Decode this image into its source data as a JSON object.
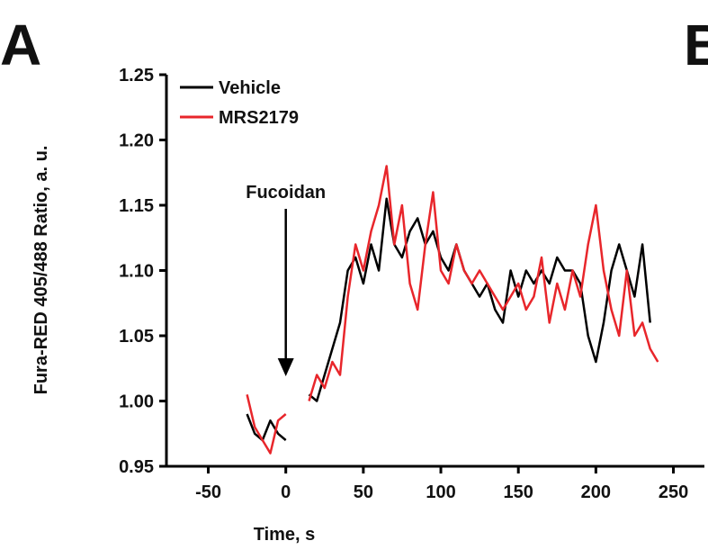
{
  "panel_labels": [
    "A",
    "B"
  ],
  "chart_data": {
    "type": "line",
    "x_label": "Time, s",
    "y_label": "Fura-RED 405/488 Ratio, a. u.",
    "x": [
      -25,
      -20,
      -15,
      -10,
      -5,
      0,
      5,
      10,
      15,
      20,
      25,
      30,
      35,
      40,
      45,
      50,
      55,
      60,
      65,
      70,
      75,
      80,
      85,
      90,
      95,
      100,
      105,
      110,
      115,
      120,
      125,
      130,
      135,
      140,
      145,
      150,
      155,
      160,
      165,
      170,
      175,
      180,
      185,
      190,
      195,
      200,
      205,
      210,
      215,
      220,
      225,
      230,
      235,
      240
    ],
    "series": [
      {
        "name": "Vehicle",
        "color": "#000000",
        "values": [
          0.99,
          0.975,
          0.97,
          0.985,
          0.975,
          0.97,
          null,
          null,
          1.005,
          1.0,
          1.02,
          1.04,
          1.06,
          1.1,
          1.11,
          1.09,
          1.12,
          1.1,
          1.155,
          1.12,
          1.11,
          1.13,
          1.14,
          1.12,
          1.13,
          1.11,
          1.1,
          1.12,
          1.1,
          1.09,
          1.08,
          1.09,
          1.07,
          1.06,
          1.1,
          1.08,
          1.1,
          1.09,
          1.1,
          1.09,
          1.11,
          1.1,
          1.1,
          1.09,
          1.05,
          1.03,
          1.06,
          1.1,
          1.12,
          1.1,
          1.08,
          1.12,
          1.06,
          null
        ]
      },
      {
        "name": "MRS2179",
        "color": "#e8262b",
        "values": [
          1.005,
          0.98,
          0.97,
          0.96,
          0.985,
          0.99,
          null,
          null,
          1.0,
          1.02,
          1.01,
          1.03,
          1.02,
          1.08,
          1.12,
          1.1,
          1.13,
          1.15,
          1.18,
          1.12,
          1.15,
          1.09,
          1.07,
          1.12,
          1.16,
          1.1,
          1.09,
          1.12,
          1.1,
          1.09,
          1.1,
          1.09,
          1.08,
          1.07,
          1.08,
          1.09,
          1.07,
          1.08,
          1.11,
          1.06,
          1.09,
          1.07,
          1.1,
          1.08,
          1.12,
          1.15,
          1.1,
          1.07,
          1.05,
          1.1,
          1.05,
          1.06,
          1.04,
          1.03
        ]
      }
    ],
    "xlim": [
      -77,
      270
    ],
    "ylim": [
      0.95,
      1.25
    ],
    "xticks": [
      -50,
      0,
      50,
      100,
      150,
      200,
      250
    ],
    "yticks": [
      0.95,
      {
        "value": 1.0,
        "label": "1.00"
      },
      1.05,
      {
        "value": 1.1,
        "label": "1.10"
      },
      1.15,
      {
        "value": 1.2,
        "label": "1.20"
      },
      1.25
    ],
    "legend": "upper left",
    "annotation": {
      "text": "Fucoidan",
      "x": 0
    }
  }
}
